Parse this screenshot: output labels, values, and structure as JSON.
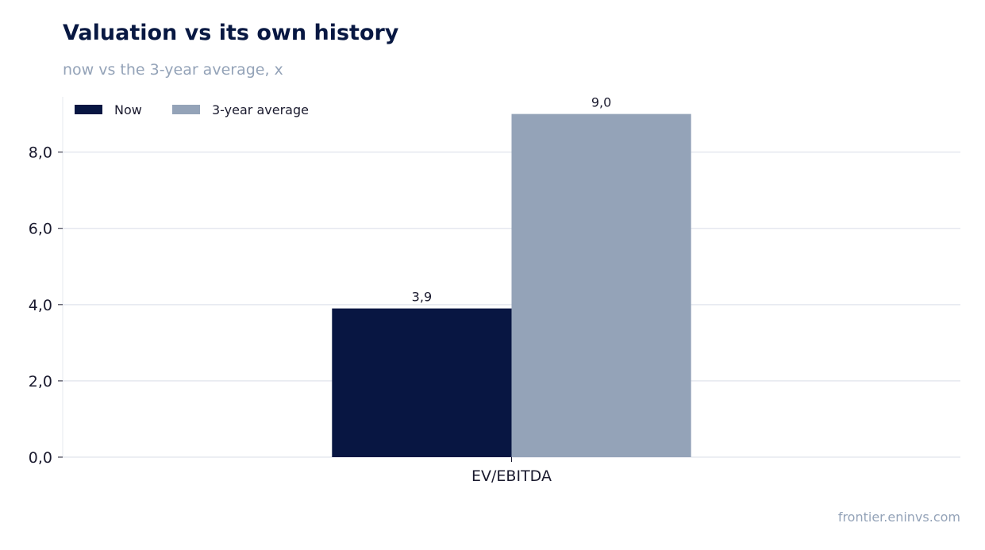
{
  "title": "Valuation vs its own history",
  "subtitle": "now vs the 3-year average, x",
  "source": "frontier.eninvs.com",
  "colors": {
    "now": "#081642",
    "avg": "#94a3b8",
    "grid": "#e5e8ef",
    "text": "#1a1a2e"
  },
  "chart_data": {
    "type": "bar",
    "categories": [
      "EV/EBITDA"
    ],
    "series": [
      {
        "name": "Now",
        "values": [
          3.9
        ],
        "color": "#081642"
      },
      {
        "name": "3-year average",
        "values": [
          9.0
        ],
        "color": "#94a3b8"
      }
    ],
    "ylim": [
      0,
      9.45
    ],
    "yticks": [
      0,
      2,
      4,
      6,
      8
    ],
    "ytick_labels": [
      "0,0",
      "2,0",
      "4,0",
      "6,0",
      "8,0"
    ],
    "data_labels": [
      "3,9",
      "9,0"
    ],
    "legend": "top-left",
    "grid": true
  }
}
